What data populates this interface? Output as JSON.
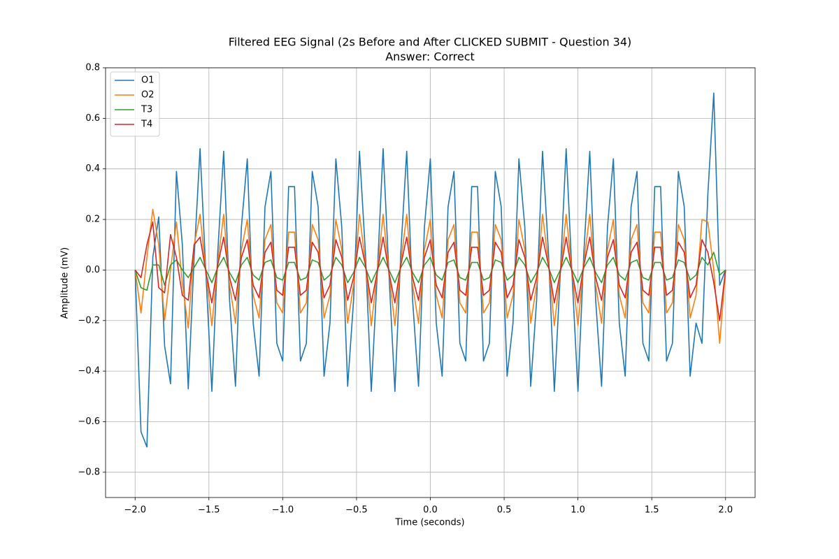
{
  "chart_data": {
    "type": "line",
    "title": "Filtered EEG Signal (2s Before and After CLICKED SUBMIT - Question 34)",
    "subtitle": "Answer: Correct",
    "x_label": "Time (seconds)",
    "y_label": "Amplitude (mV)",
    "xlim": [
      -2.2,
      2.2
    ],
    "ylim": [
      -0.9,
      0.8
    ],
    "xticks": [
      {
        "value": -2,
        "label": "−2.0"
      },
      {
        "value": -1.5,
        "label": "−1.5"
      },
      {
        "value": -1,
        "label": "−1.0"
      },
      {
        "value": -0.5,
        "label": "−0.5"
      },
      {
        "value": 0,
        "label": "0.0"
      },
      {
        "value": 0.5,
        "label": "0.5"
      },
      {
        "value": 1,
        "label": "1.0"
      },
      {
        "value": 1.5,
        "label": "1.5"
      },
      {
        "value": 2,
        "label": "2.0"
      }
    ],
    "yticks": [
      {
        "value": -0.8,
        "label": "−0.8"
      },
      {
        "value": -0.6,
        "label": "−0.6"
      },
      {
        "value": -0.4,
        "label": "−0.4"
      },
      {
        "value": -0.2,
        "label": "−0.2"
      },
      {
        "value": 0,
        "label": "0.0"
      },
      {
        "value": 0.2,
        "label": "0.2"
      },
      {
        "value": 0.4,
        "label": "0.4"
      },
      {
        "value": 0.6,
        "label": "0.6"
      },
      {
        "value": 0.8,
        "label": "0.8"
      }
    ],
    "grid": true,
    "legend": "upper-left",
    "x": [
      -2,
      -1.96,
      -1.92,
      -1.88,
      -1.84,
      -1.8,
      -1.76,
      -1.72,
      -1.68,
      -1.64,
      -1.6,
      -1.56,
      -1.52,
      -1.48,
      -1.44,
      -1.4,
      -1.36,
      -1.32,
      -1.28,
      -1.24,
      -1.2,
      -1.16,
      -1.12,
      -1.08,
      -1.04,
      -1,
      -0.96,
      -0.92,
      -0.88,
      -0.84,
      -0.8,
      -0.76,
      -0.72,
      -0.68,
      -0.64,
      -0.6,
      -0.56,
      -0.52,
      -0.48,
      -0.44,
      -0.4,
      -0.36,
      -0.32,
      -0.28,
      -0.24,
      -0.2,
      -0.16,
      -0.12,
      -0.08,
      -0.04,
      0,
      0.04,
      0.08,
      0.12,
      0.16,
      0.2,
      0.24,
      0.28,
      0.32,
      0.36,
      0.4,
      0.44,
      0.48,
      0.52,
      0.56,
      0.6,
      0.64,
      0.68,
      0.72,
      0.76,
      0.8,
      0.84,
      0.88,
      0.92,
      0.96,
      1,
      1.04,
      1.08,
      1.12,
      1.16,
      1.2,
      1.24,
      1.28,
      1.32,
      1.36,
      1.4,
      1.44,
      1.48,
      1.52,
      1.56,
      1.6,
      1.64,
      1.68,
      1.72,
      1.76,
      1.8,
      1.84,
      1.88,
      1.92,
      1.96,
      2
    ],
    "series": [
      {
        "name": "O1",
        "color": "#1f77b4",
        "values": [
          0,
          -0.64,
          -0.7,
          0.05,
          0.21,
          -0.3,
          -0.45,
          0.39,
          0.1,
          -0.47,
          0.05,
          0.48,
          -0.02,
          -0.48,
          0.07,
          0.47,
          -0.12,
          -0.46,
          0.17,
          0.44,
          -0.21,
          -0.42,
          0.25,
          0.39,
          -0.29,
          -0.36,
          0.33,
          0.33,
          -0.36,
          -0.29,
          0.39,
          0.25,
          -0.42,
          -0.21,
          0.44,
          0.17,
          -0.46,
          -0.12,
          0.47,
          0.07,
          -0.48,
          -0.02,
          0.48,
          -0.02,
          -0.48,
          0.07,
          0.47,
          -0.12,
          -0.46,
          0.17,
          0.44,
          -0.21,
          -0.42,
          0.25,
          0.39,
          -0.29,
          -0.36,
          0.33,
          0.33,
          -0.36,
          -0.29,
          0.39,
          0.25,
          -0.42,
          -0.21,
          0.44,
          0.17,
          -0.46,
          -0.12,
          0.47,
          0.07,
          -0.48,
          -0.02,
          0.48,
          -0.02,
          -0.48,
          0.07,
          0.47,
          -0.12,
          -0.46,
          0.17,
          0.44,
          -0.21,
          -0.42,
          0.25,
          0.39,
          -0.29,
          -0.36,
          0.33,
          0.33,
          -0.36,
          -0.29,
          0.39,
          0.25,
          -0.42,
          -0.21,
          -0.29,
          0.3,
          0.7,
          -0.06,
          0
        ]
      },
      {
        "name": "O2",
        "color": "#ff7f0e",
        "values": [
          0,
          -0.17,
          0.05,
          0.24,
          0.1,
          -0.2,
          0,
          0.19,
          -0.05,
          -0.23,
          0.1,
          0.22,
          -0.01,
          -0.22,
          0.03,
          0.22,
          -0.06,
          -0.21,
          0.08,
          0.2,
          -0.1,
          -0.19,
          0.12,
          0.18,
          -0.13,
          -0.17,
          0.15,
          0.15,
          -0.17,
          -0.13,
          0.18,
          0.12,
          -0.19,
          -0.1,
          0.2,
          0.08,
          -0.21,
          -0.06,
          0.22,
          0.03,
          -0.22,
          -0.01,
          0.22,
          -0.01,
          -0.22,
          0.03,
          0.22,
          -0.06,
          -0.21,
          0.08,
          0.2,
          -0.1,
          -0.19,
          0.12,
          0.18,
          -0.13,
          -0.17,
          0.15,
          0.15,
          -0.17,
          -0.13,
          0.18,
          0.12,
          -0.19,
          -0.1,
          0.2,
          0.08,
          -0.21,
          -0.06,
          0.22,
          0.03,
          -0.22,
          -0.01,
          0.22,
          -0.01,
          -0.22,
          0.03,
          0.22,
          -0.06,
          -0.21,
          0.08,
          0.2,
          -0.1,
          -0.19,
          0.12,
          0.18,
          -0.13,
          -0.17,
          0.15,
          0.15,
          -0.17,
          -0.13,
          0.18,
          0.12,
          -0.19,
          -0.1,
          0.2,
          0.19,
          0,
          -0.29,
          0
        ]
      },
      {
        "name": "T3",
        "color": "#2ca02c",
        "values": [
          0,
          -0.07,
          -0.08,
          0.02,
          0.02,
          -0.06,
          0.02,
          0.04,
          0,
          -0.03,
          0.01,
          0.05,
          0,
          -0.05,
          0.01,
          0.05,
          -0.01,
          -0.05,
          0.02,
          0.05,
          -0.02,
          -0.04,
          0.03,
          0.04,
          -0.03,
          -0.04,
          0.03,
          0.03,
          -0.04,
          -0.03,
          0.04,
          0.03,
          -0.04,
          -0.02,
          0.05,
          0.02,
          -0.05,
          -0.01,
          0.05,
          0.01,
          -0.05,
          0,
          0.05,
          0,
          -0.05,
          0.01,
          0.05,
          -0.01,
          -0.05,
          0.02,
          0.05,
          -0.02,
          -0.04,
          0.03,
          0.04,
          -0.03,
          -0.04,
          0.03,
          0.03,
          -0.04,
          -0.03,
          0.04,
          0.03,
          -0.04,
          -0.02,
          0.05,
          0.02,
          -0.05,
          -0.01,
          0.05,
          0.01,
          -0.05,
          0,
          0.05,
          0,
          -0.05,
          0.01,
          0.05,
          -0.01,
          -0.05,
          0.02,
          0.05,
          -0.02,
          -0.04,
          0.03,
          0.04,
          -0.03,
          -0.04,
          0.03,
          0.03,
          -0.04,
          -0.03,
          0.04,
          0.03,
          -0.04,
          -0.02,
          0.05,
          0.02,
          0.07,
          -0.02,
          0
        ]
      },
      {
        "name": "T4",
        "color": "#d62728",
        "values": [
          0,
          -0.03,
          0.1,
          0.19,
          -0.07,
          -0.09,
          0.14,
          0.05,
          -0.1,
          -0.12,
          0.1,
          0.13,
          -0.01,
          -0.13,
          0.02,
          0.13,
          -0.03,
          -0.12,
          0.05,
          0.12,
          -0.06,
          -0.11,
          0.07,
          0.11,
          -0.08,
          -0.1,
          0.09,
          0.09,
          -0.1,
          -0.08,
          0.11,
          0.07,
          -0.11,
          -0.06,
          0.12,
          0.05,
          -0.12,
          -0.03,
          0.13,
          0.02,
          -0.13,
          -0.01,
          0.13,
          -0.01,
          -0.13,
          0.02,
          0.13,
          -0.03,
          -0.12,
          0.05,
          0.12,
          -0.06,
          -0.11,
          0.07,
          0.11,
          -0.08,
          -0.1,
          0.09,
          0.09,
          -0.1,
          -0.08,
          0.11,
          0.07,
          -0.11,
          -0.06,
          0.12,
          0.05,
          -0.12,
          -0.03,
          0.13,
          0.02,
          -0.13,
          -0.01,
          0.13,
          -0.01,
          -0.13,
          0.02,
          0.13,
          -0.03,
          -0.12,
          0.05,
          0.12,
          -0.06,
          -0.11,
          0.07,
          0.11,
          -0.08,
          -0.1,
          0.09,
          0.09,
          -0.1,
          -0.08,
          0.11,
          0.07,
          -0.11,
          -0.06,
          0.12,
          0.07,
          -0.05,
          -0.2,
          0
        ]
      }
    ]
  }
}
